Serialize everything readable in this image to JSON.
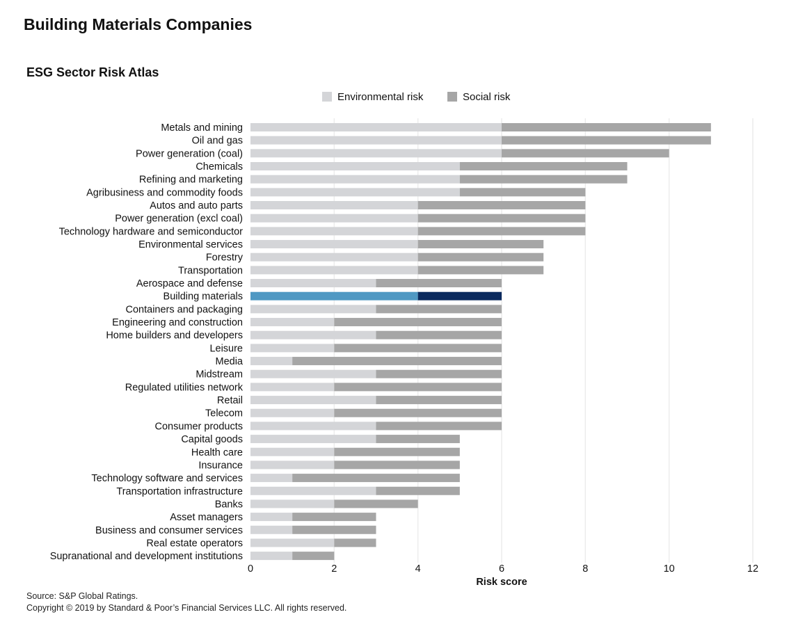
{
  "page_title": "Building Materials Companies",
  "footer": {
    "source": "Source: S&P Global Ratings.",
    "copyright": "Copyright © 2019 by Standard & Poor’s Financial Services LLC. All rights reserved."
  },
  "colors": {
    "environmental": "#d4d5d8",
    "social": "#a6a6a6",
    "highlight_environmental": "#4f98c3",
    "highlight_social": "#0b2a5e"
  },
  "chart_data": {
    "type": "bar",
    "orientation": "horizontal",
    "stacked": true,
    "title": "ESG Sector Risk Atlas",
    "xlabel": "Risk score",
    "ylabel": "",
    "xlim": [
      0,
      12
    ],
    "xticks": [
      0,
      2,
      4,
      6,
      8,
      10,
      12
    ],
    "grid": true,
    "legend": "top",
    "highlight": "Building materials",
    "categories": [
      "Metals and mining",
      "Oil and gas",
      "Power generation (coal)",
      "Chemicals",
      "Refining and marketing",
      "Agribusiness and commodity foods",
      "Autos and auto parts",
      "Power generation (excl coal)",
      "Technology hardware and semiconductor",
      "Environmental services",
      "Forestry",
      "Transportation",
      "Aerospace and defense",
      "Building materials",
      "Containers and packaging",
      "Engineering and construction",
      "Home builders and developers",
      "Leisure",
      "Media",
      "Midstream",
      "Regulated utilities network",
      "Retail",
      "Telecom",
      "Consumer products",
      "Capital goods",
      "Health care",
      "Insurance",
      "Technology software and services",
      "Transportation infrastructure",
      "Banks",
      "Asset managers",
      "Business and consumer services",
      "Real estate operators",
      "Supranational and development institutions"
    ],
    "series": [
      {
        "name": "Environmental risk",
        "values": [
          6,
          6,
          6,
          5,
          5,
          5,
          4,
          4,
          4,
          4,
          4,
          4,
          3,
          4,
          3,
          2,
          3,
          2,
          1,
          3,
          2,
          3,
          2,
          3,
          3,
          2,
          2,
          1,
          3,
          2,
          1,
          1,
          2,
          1
        ]
      },
      {
        "name": "Social risk",
        "values": [
          5,
          5,
          4,
          4,
          4,
          3,
          4,
          4,
          4,
          3,
          3,
          3,
          3,
          2,
          3,
          4,
          3,
          4,
          5,
          3,
          4,
          3,
          4,
          3,
          2,
          3,
          3,
          4,
          2,
          2,
          2,
          2,
          1,
          1
        ]
      }
    ]
  }
}
